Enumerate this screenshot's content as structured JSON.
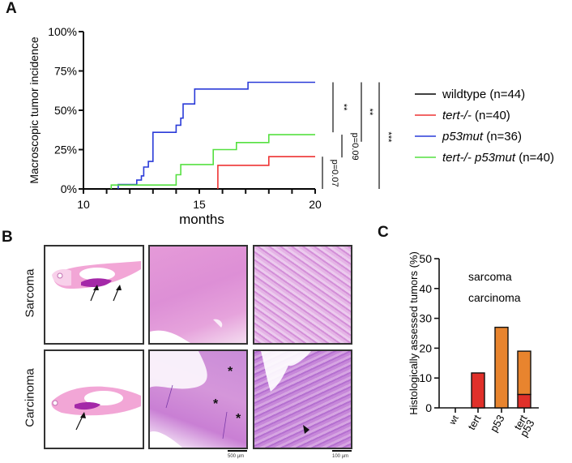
{
  "panels": {
    "a_label": "A",
    "b_label": "B",
    "c_label": "C"
  },
  "chart_data": [
    {
      "id": "A",
      "type": "line",
      "subtype": "step",
      "title": "",
      "xlabel": "months",
      "ylabel": "Macroscopic tumor incidence",
      "xlim": [
        10,
        20
      ],
      "ylim": [
        0,
        100
      ],
      "x_ticks": [
        10,
        11,
        12,
        13,
        14,
        15,
        16,
        17,
        18,
        19,
        20
      ],
      "x_tick_labels": [
        {
          "value": 10,
          "label": "10"
        },
        {
          "value": 15,
          "label": "15"
        },
        {
          "value": 20,
          "label": "20"
        }
      ],
      "y_ticks": [
        0,
        25,
        50,
        75,
        100
      ],
      "y_tick_labels": [
        "0%",
        "25%",
        "50%",
        "75%",
        "100%"
      ],
      "legend_position": "right",
      "series": [
        {
          "name": "wildtype",
          "name_italic": false,
          "n_label": "(n=44)",
          "color": "#000000",
          "points": [
            [
              10,
              0
            ],
            [
              20,
              0
            ]
          ]
        },
        {
          "name": "tert-/-",
          "name_italic": true,
          "n_label": "(n=40)",
          "color": "#ee3333",
          "points": [
            [
              15.8,
              0
            ],
            [
              15.8,
              15
            ],
            [
              18.0,
              15
            ],
            [
              18.0,
              20.5
            ],
            [
              20,
              20.5
            ]
          ]
        },
        {
          "name": "p53mut",
          "name_italic": true,
          "n_label": "(n=36)",
          "color": "#2a3bd8",
          "points": [
            [
              11.5,
              0
            ],
            [
              11.5,
              2.8
            ],
            [
              12.3,
              2.8
            ],
            [
              12.3,
              5.6
            ],
            [
              12.5,
              5.6
            ],
            [
              12.5,
              8.3
            ],
            [
              12.6,
              8.3
            ],
            [
              12.6,
              13.9
            ],
            [
              12.8,
              13.9
            ],
            [
              12.8,
              17.5
            ],
            [
              13.0,
              17.5
            ],
            [
              13.0,
              36
            ],
            [
              14.0,
              36
            ],
            [
              14.0,
              40.5
            ],
            [
              14.2,
              40.5
            ],
            [
              14.2,
              45
            ],
            [
              14.3,
              45
            ],
            [
              14.3,
              54
            ],
            [
              14.8,
              54
            ],
            [
              14.8,
              63.5
            ],
            [
              17.1,
              63.5
            ],
            [
              17.1,
              67.8
            ],
            [
              20,
              67.8
            ]
          ]
        },
        {
          "name": "tert-/- p53mut",
          "name_italic": true,
          "n_label": "(n=40)",
          "color": "#55e040",
          "points": [
            [
              11.2,
              0
            ],
            [
              11.2,
              2.5
            ],
            [
              14.0,
              2.5
            ],
            [
              14.0,
              9
            ],
            [
              14.2,
              9
            ],
            [
              14.2,
              15.5
            ],
            [
              15.6,
              15.5
            ],
            [
              15.6,
              25
            ],
            [
              16.6,
              25
            ],
            [
              16.6,
              29.5
            ],
            [
              18.0,
              29.5
            ],
            [
              18.0,
              34.5
            ],
            [
              20,
              34.5
            ]
          ]
        }
      ],
      "annotations": [
        {
          "text": "p=0.07",
          "comparison": "wildtype vs tert-/-"
        },
        {
          "text": "**",
          "comparison": "wildtype vs p53mut"
        },
        {
          "text": "p=0.09",
          "comparison": "p53mut vs tert-/- p53mut"
        },
        {
          "text": "**",
          "comparison": "tert-/- vs p53mut"
        },
        {
          "text": "***",
          "comparison": "tert-/- vs tert-/- p53mut"
        }
      ]
    },
    {
      "id": "C",
      "type": "bar",
      "subtype": "stacked",
      "title": "",
      "xlabel": "",
      "ylabel": "Histologically assessed tumors (%)",
      "ylim": [
        0,
        50
      ],
      "y_ticks": [
        0,
        10,
        20,
        30,
        40,
        50
      ],
      "categories": [
        "wt",
        "tert",
        "p53",
        "tert\np53"
      ],
      "category_lines": [
        [
          "wt"
        ],
        [
          "tert"
        ],
        [
          "p53"
        ],
        [
          "tert",
          "p53"
        ]
      ],
      "legend_position": "top-right",
      "series": [
        {
          "name": "carcinoma",
          "color": "#e0302a",
          "values": [
            0,
            11.7,
            0,
            4.5
          ]
        },
        {
          "name": "sarcoma",
          "color": "#e8842e",
          "values": [
            0,
            0,
            27,
            14.5
          ]
        }
      ],
      "legend_labels": [
        "sarcoma",
        "carcinoma"
      ]
    }
  ],
  "histology": {
    "row_labels": [
      "Sarcoma",
      "Carcinoma"
    ],
    "scale_bars": [
      "500 µm",
      "100 µm"
    ],
    "asterisk": "*"
  }
}
